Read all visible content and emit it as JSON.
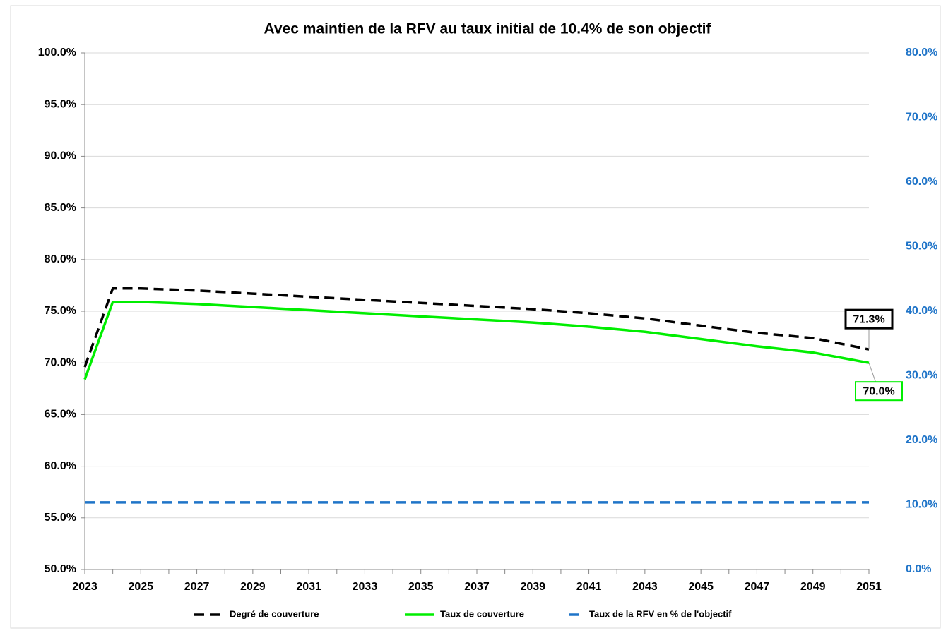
{
  "chart_data": {
    "type": "line",
    "title": "Avec maintien de la RFV au taux initial de 10.4% de son objectif",
    "x": [
      2023,
      2024,
      2025,
      2026,
      2027,
      2028,
      2029,
      2030,
      2031,
      2032,
      2033,
      2034,
      2035,
      2036,
      2037,
      2038,
      2039,
      2040,
      2041,
      2042,
      2043,
      2044,
      2045,
      2046,
      2047,
      2048,
      2049,
      2050,
      2051
    ],
    "xlim": [
      2023,
      2051
    ],
    "xticks": [
      2023,
      2025,
      2027,
      2029,
      2031,
      2033,
      2035,
      2037,
      2039,
      2041,
      2043,
      2045,
      2047,
      2049,
      2051
    ],
    "ylim": [
      50,
      100
    ],
    "yticks": [
      {
        "value": 50,
        "label": "50.0%"
      },
      {
        "value": 55,
        "label": "55.0%"
      },
      {
        "value": 60,
        "label": "60.0%"
      },
      {
        "value": 65,
        "label": "65.0%"
      },
      {
        "value": 70,
        "label": "70.0%"
      },
      {
        "value": 75,
        "label": "75.0%"
      },
      {
        "value": 80,
        "label": "80.0%"
      },
      {
        "value": 85,
        "label": "85.0%"
      },
      {
        "value": 90,
        "label": "90.0%"
      },
      {
        "value": 95,
        "label": "95.0%"
      },
      {
        "value": 100,
        "label": "100.0%"
      }
    ],
    "y2lim": [
      0,
      80
    ],
    "y2ticks": [
      {
        "value": 0,
        "label": "0.0%"
      },
      {
        "value": 10,
        "label": "10.0%"
      },
      {
        "value": 20,
        "label": "20.0%"
      },
      {
        "value": 30,
        "label": "30.0%"
      },
      {
        "value": 40,
        "label": "40.0%"
      },
      {
        "value": 50,
        "label": "50.0%"
      },
      {
        "value": 60,
        "label": "60.0%"
      },
      {
        "value": 70,
        "label": "70.0%"
      },
      {
        "value": 80,
        "label": "80.0%"
      }
    ],
    "grid": true,
    "legend": "bottom",
    "series": [
      {
        "name": "Degré de couverture",
        "color": "#000000",
        "dashed": true,
        "values": [
          69.6,
          77.2,
          77.2,
          77.1,
          77.0,
          76.85,
          76.7,
          76.55,
          76.4,
          76.25,
          76.1,
          75.95,
          75.8,
          75.65,
          75.5,
          75.35,
          75.2,
          75.0,
          74.8,
          74.55,
          74.3,
          73.95,
          73.6,
          73.25,
          72.9,
          72.65,
          72.4,
          71.85,
          71.3
        ],
        "value_labels": [
          null,
          null,
          null,
          null,
          null,
          null,
          null,
          null,
          null,
          null,
          null,
          null,
          null,
          null,
          null,
          null,
          null,
          null,
          null,
          null,
          null,
          null,
          null,
          null,
          null,
          null,
          null,
          null,
          "71.3%"
        ]
      },
      {
        "name": "Taux de couverture",
        "color": "#00ee00",
        "dashed": false,
        "values": [
          68.4,
          75.9,
          75.9,
          75.8,
          75.7,
          75.55,
          75.4,
          75.25,
          75.1,
          74.95,
          74.8,
          74.65,
          74.5,
          74.35,
          74.2,
          74.05,
          73.9,
          73.7,
          73.5,
          73.25,
          73.0,
          72.65,
          72.3,
          71.95,
          71.6,
          71.3,
          71.0,
          70.5,
          70.0
        ],
        "value_labels": [
          null,
          null,
          null,
          null,
          null,
          null,
          null,
          null,
          null,
          null,
          null,
          null,
          null,
          null,
          null,
          null,
          null,
          null,
          null,
          null,
          null,
          null,
          null,
          null,
          null,
          null,
          null,
          null,
          "70.0%"
        ]
      },
      {
        "name": "Taux de la RFV en % de l'objectif",
        "color": "#1f74c8",
        "dashed": true,
        "axis": "y2",
        "values": [
          10.4,
          10.4,
          10.4,
          10.4,
          10.4,
          10.4,
          10.4,
          10.4,
          10.4,
          10.4,
          10.4,
          10.4,
          10.4,
          10.4,
          10.4,
          10.4,
          10.4,
          10.4,
          10.4,
          10.4,
          10.4,
          10.4,
          10.4,
          10.4,
          10.4,
          10.4,
          10.4,
          10.4,
          10.4
        ]
      }
    ]
  }
}
